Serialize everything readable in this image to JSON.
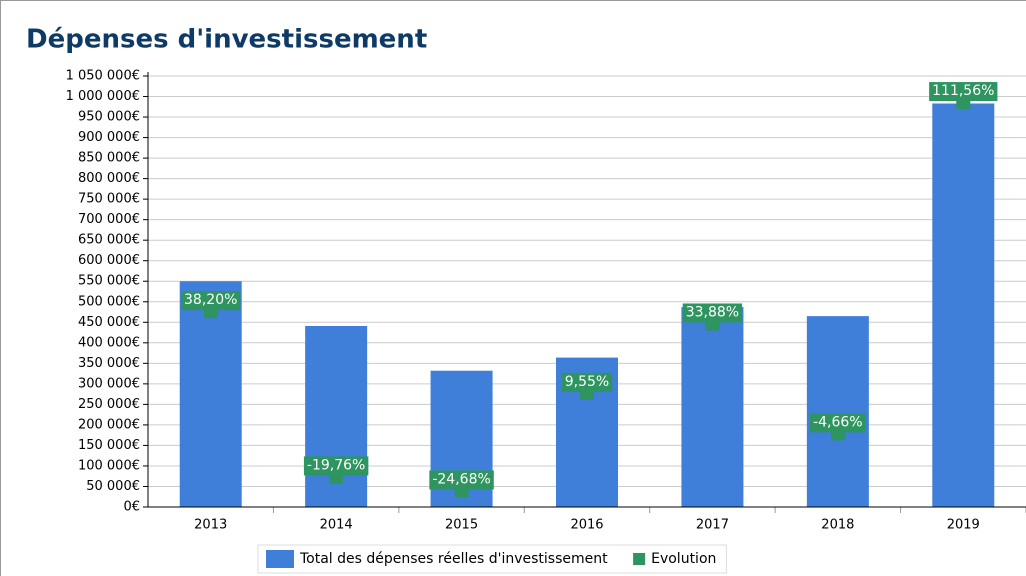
{
  "chart_data": {
    "type": "bar",
    "title": "Dépenses d'investissement",
    "categories": [
      "2013",
      "2014",
      "2015",
      "2016",
      "2017",
      "2018",
      "2019"
    ],
    "series": [
      {
        "name": "Total des dépenses réelles d'investissement",
        "type": "bar",
        "color": "#3f7fd9",
        "values": [
          550000,
          441000,
          332000,
          364000,
          487000,
          465000,
          983000
        ]
      },
      {
        "name": "Evolution",
        "type": "marker",
        "axis": "y2",
        "color": "#2e9460",
        "values": [
          38.2,
          -19.76,
          -24.68,
          9.55,
          33.88,
          -4.66,
          111.56
        ],
        "value_labels": [
          "38,20%",
          "-19,76%",
          "-24,68%",
          "9,55%",
          "33,88%",
          "-4,66%",
          "111,56%"
        ]
      }
    ],
    "ylim": [
      0,
      1050000
    ],
    "yticks": [
      {
        "value": 0,
        "label": "0€"
      },
      {
        "value": 50000,
        "label": "50 000€"
      },
      {
        "value": 100000,
        "label": "100 000€"
      },
      {
        "value": 150000,
        "label": "150 000€"
      },
      {
        "value": 200000,
        "label": "200 000€"
      },
      {
        "value": 250000,
        "label": "250 000€"
      },
      {
        "value": 300000,
        "label": "300 000€"
      },
      {
        "value": 350000,
        "label": "350 000€"
      },
      {
        "value": 400000,
        "label": "400 000€"
      },
      {
        "value": 450000,
        "label": "450 000€"
      },
      {
        "value": 500000,
        "label": "500 000€"
      },
      {
        "value": 550000,
        "label": "550 000€"
      },
      {
        "value": 600000,
        "label": "600 000€"
      },
      {
        "value": 650000,
        "label": "650 000€"
      },
      {
        "value": 700000,
        "label": "700 000€"
      },
      {
        "value": 750000,
        "label": "750 000€"
      },
      {
        "value": 800000,
        "label": "800 000€"
      },
      {
        "value": 850000,
        "label": "850 000€"
      },
      {
        "value": 900000,
        "label": "900 000€"
      },
      {
        "value": 950000,
        "label": "950 000€"
      },
      {
        "value": 1000000,
        "label": "1 000 000€"
      },
      {
        "value": 1050000,
        "label": "1 050 000€"
      }
    ],
    "y2lim": [
      -30.5,
      120.7
    ],
    "grid": true,
    "legend": "bottom"
  }
}
